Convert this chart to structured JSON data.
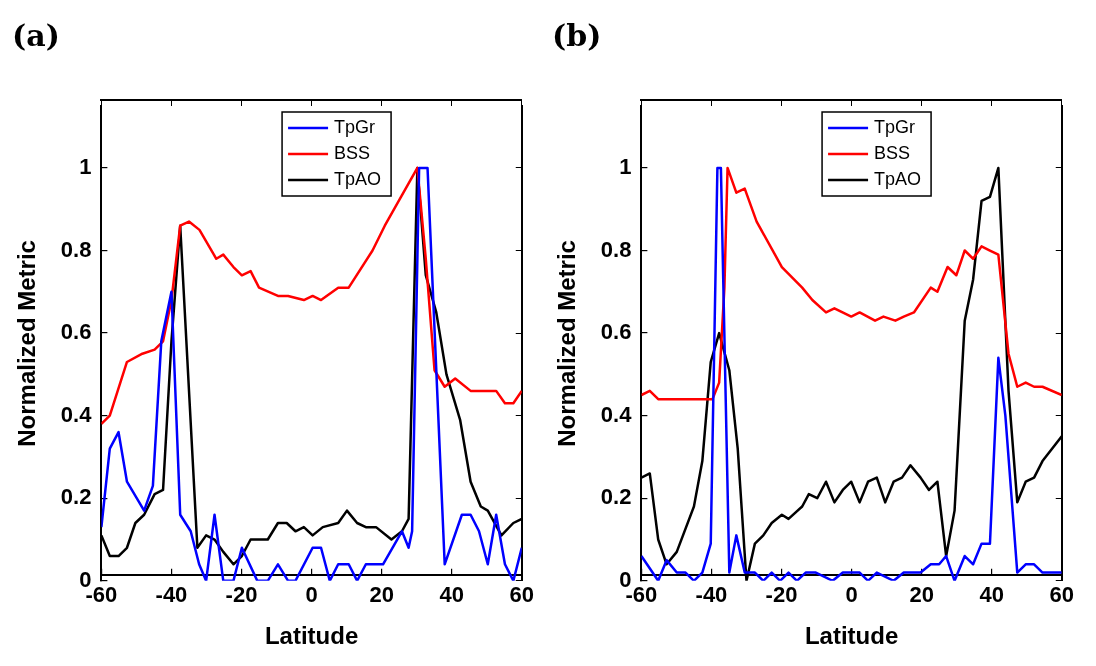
{
  "chart_data": [
    {
      "type": "line",
      "title": "(a)",
      "xlabel": "Latitude",
      "ylabel": "Normalized Metric",
      "xlim": [
        -60,
        60
      ],
      "xticks": [
        -60,
        -40,
        -20,
        0,
        20,
        40,
        60
      ],
      "ylim": [
        0,
        1.15
      ],
      "yticks": [
        0,
        0.2,
        0.4,
        0.6,
        0.8,
        1
      ],
      "legend": "top",
      "grid": false,
      "marker": "none",
      "line_style": "solid",
      "series": [
        {
          "name": "TpGr",
          "color": "#0000ff",
          "x": [
            -60,
            -57.6,
            -55.1,
            -52.7,
            -47.8,
            -45.3,
            -42.9,
            -40,
            -37.5,
            -34.5,
            -32.1,
            -30.1,
            -27.7,
            -25.2,
            -22.3,
            -19.9,
            -15.5,
            -12.5,
            -9.6,
            -6.7,
            -4.6,
            0.3,
            2.7,
            5.2,
            7.6,
            10.6,
            13,
            15.5,
            20.4,
            25.8,
            27.7,
            28.7,
            30.7,
            33.1,
            38,
            42.9,
            45.4,
            47.8,
            50.3,
            52.7,
            55.2,
            57.6,
            60
          ],
          "values": [
            0.13,
            0.32,
            0.36,
            0.24,
            0.17,
            0.23,
            0.58,
            0.7,
            0.16,
            0.12,
            0.04,
            0,
            0.16,
            0,
            0,
            0.08,
            0,
            0,
            0.04,
            0,
            0,
            0.08,
            0.08,
            0,
            0.04,
            0.04,
            0,
            0.04,
            0.04,
            0.12,
            0.08,
            0.12,
            1,
            1,
            0.04,
            0.16,
            0.16,
            0.12,
            0.04,
            0.16,
            0.04,
            0,
            0.08
          ]
        },
        {
          "name": "BSS",
          "color": "#ff0000",
          "x": [
            -60,
            -57.6,
            -52.7,
            -48.3,
            -44.8,
            -42.4,
            -40,
            -37.5,
            -35,
            -32,
            -27.2,
            -25.2,
            -22.3,
            -19.9,
            -17.4,
            -15,
            -9.6,
            -6.7,
            -2.2,
            0.3,
            2.7,
            7.6,
            10.6,
            17.4,
            20.9,
            30.2,
            32.6,
            35.1,
            38,
            41,
            45.4,
            51.2,
            52.7,
            55.2,
            57.6,
            60
          ],
          "values": [
            0.38,
            0.4,
            0.53,
            0.55,
            0.56,
            0.58,
            0.68,
            0.86,
            0.87,
            0.85,
            0.78,
            0.79,
            0.76,
            0.74,
            0.75,
            0.71,
            0.69,
            0.69,
            0.68,
            0.69,
            0.68,
            0.71,
            0.71,
            0.8,
            0.86,
            1,
            0.78,
            0.51,
            0.47,
            0.49,
            0.46,
            0.46,
            0.46,
            0.43,
            0.43,
            0.46
          ]
        },
        {
          "name": "TpAO",
          "color": "#000000",
          "x": [
            -60,
            -57.6,
            -55.1,
            -52.7,
            -50.3,
            -47.8,
            -44.8,
            -42.4,
            -40,
            -37.5,
            -32.6,
            -30.1,
            -27.7,
            -25.2,
            -22.3,
            -19.9,
            -17.4,
            -15,
            -12.5,
            -9.6,
            -7.1,
            -4.6,
            -2.2,
            0.3,
            3.2,
            7.6,
            10.1,
            13,
            15.5,
            18.4,
            22.8,
            25.8,
            27.7,
            30.2,
            32.6,
            35.6,
            38.5,
            42.4,
            45.4,
            48.3,
            50.3,
            54.2,
            57.6,
            60
          ],
          "values": [
            0.11,
            0.06,
            0.06,
            0.08,
            0.14,
            0.16,
            0.21,
            0.22,
            0.58,
            0.86,
            0.08,
            0.11,
            0.1,
            0.07,
            0.04,
            0.06,
            0.1,
            0.1,
            0.1,
            0.14,
            0.14,
            0.12,
            0.13,
            0.11,
            0.13,
            0.14,
            0.17,
            0.14,
            0.13,
            0.13,
            0.1,
            0.12,
            0.15,
            1,
            0.74,
            0.65,
            0.5,
            0.39,
            0.24,
            0.18,
            0.17,
            0.11,
            0.14,
            0.15
          ]
        }
      ]
    },
    {
      "type": "line",
      "title": "(b)",
      "xlabel": "Latitude",
      "ylabel": "Normalized Metric",
      "xlim": [
        -60,
        60
      ],
      "xticks": [
        -60,
        -40,
        -20,
        0,
        20,
        40,
        60
      ],
      "ylim": [
        0,
        1.15
      ],
      "yticks": [
        0,
        0.2,
        0.4,
        0.6,
        0.8,
        1
      ],
      "legend": "top",
      "grid": false,
      "marker": "none",
      "line_style": "solid",
      "series": [
        {
          "name": "TpGr",
          "color": "#0000ff",
          "x": [
            -60,
            -55.2,
            -52.8,
            -49.9,
            -47.4,
            -45,
            -42.6,
            -40.2,
            -38.3,
            -37.3,
            -34.9,
            -32.9,
            -30.5,
            -27.6,
            -25.2,
            -22.8,
            -20.4,
            -18,
            -15.6,
            -13.1,
            -10.2,
            -5.4,
            -2.5,
            2.3,
            4.7,
            7.2,
            12,
            14.9,
            19.7,
            22.6,
            25,
            27,
            29.4,
            32.3,
            34.7,
            37.1,
            39.5,
            41.9,
            43.9,
            47.3,
            49.7,
            52.1,
            54.5,
            60
          ],
          "values": [
            0.06,
            0,
            0.05,
            0.02,
            0.02,
            0,
            0.02,
            0.09,
            1,
            1,
            0.02,
            0.11,
            0.02,
            0.02,
            0,
            0.02,
            0,
            0.02,
            0,
            0.02,
            0.02,
            0,
            0.02,
            0.02,
            0,
            0.02,
            0,
            0.02,
            0.02,
            0.04,
            0.04,
            0.06,
            0,
            0.06,
            0.04,
            0.09,
            0.09,
            0.54,
            0.4,
            0.02,
            0.04,
            0.04,
            0.02,
            0.02
          ]
        },
        {
          "name": "BSS",
          "color": "#ff0000",
          "x": [
            -60,
            -57.6,
            -55.2,
            -52.8,
            -47.9,
            -45,
            -42.1,
            -39.7,
            -37.8,
            -36.3,
            -35.4,
            -32.9,
            -30.5,
            -27.1,
            -19.9,
            -14.1,
            -11.2,
            -7.3,
            -4.9,
            -0.1,
            2.3,
            6.7,
            9.1,
            12.5,
            14.9,
            17.8,
            22.6,
            24.5,
            27.4,
            29.9,
            32.3,
            34.7,
            37.1,
            39.5,
            41.9,
            44.8,
            47.3,
            49.7,
            52.1,
            54.5,
            60
          ],
          "values": [
            0.45,
            0.46,
            0.44,
            0.44,
            0.44,
            0.44,
            0.44,
            0.44,
            0.48,
            0.71,
            1,
            0.94,
            0.95,
            0.87,
            0.76,
            0.71,
            0.68,
            0.65,
            0.66,
            0.64,
            0.65,
            0.63,
            0.64,
            0.63,
            0.64,
            0.65,
            0.71,
            0.7,
            0.76,
            0.74,
            0.8,
            0.78,
            0.81,
            0.8,
            0.79,
            0.55,
            0.47,
            0.48,
            0.47,
            0.47,
            0.45
          ]
        },
        {
          "name": "TpAO",
          "color": "#000000",
          "x": [
            -60,
            -57.6,
            -55.2,
            -52.8,
            -49.9,
            -45,
            -42.6,
            -40.2,
            -37.8,
            -34.9,
            -32.5,
            -30,
            -27.6,
            -25.2,
            -22.8,
            -19.9,
            -18,
            -14.1,
            -12.2,
            -9.8,
            -7.3,
            -4.9,
            -2.5,
            -0.1,
            2.3,
            4.7,
            7.2,
            9.6,
            12,
            14.4,
            16.8,
            19.7,
            22.1,
            24.5,
            27,
            29.4,
            32.3,
            34.7,
            37.1,
            39.5,
            41.9,
            44.8,
            47.3,
            49.7,
            52.1,
            54.5,
            60
          ],
          "values": [
            0.25,
            0.26,
            0.1,
            0.04,
            0.07,
            0.18,
            0.29,
            0.53,
            0.6,
            0.51,
            0.32,
            0,
            0.09,
            0.11,
            0.14,
            0.16,
            0.15,
            0.18,
            0.21,
            0.2,
            0.24,
            0.19,
            0.22,
            0.24,
            0.19,
            0.24,
            0.25,
            0.19,
            0.24,
            0.25,
            0.28,
            0.25,
            0.22,
            0.24,
            0.06,
            0.17,
            0.63,
            0.73,
            0.92,
            0.93,
            1,
            0.46,
            0.19,
            0.24,
            0.25,
            0.29,
            0.35
          ]
        }
      ]
    }
  ]
}
